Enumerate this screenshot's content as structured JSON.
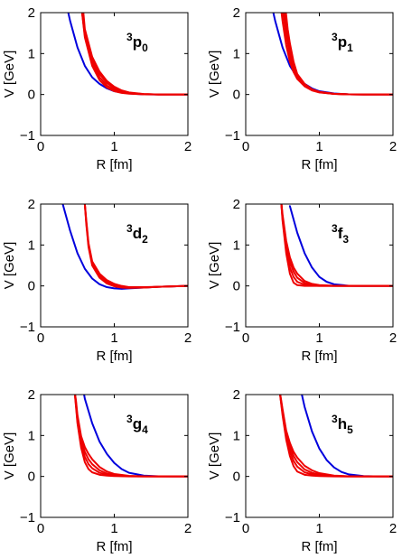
{
  "colors": {
    "blue": "#0000dd",
    "red": "#ee0000",
    "axes": "#000000"
  },
  "chart_data": [
    {
      "type": "line",
      "wave_sup": "3",
      "wave_letter": "p",
      "wave_sub": "0",
      "xlabel": "R [fm]",
      "ylabel": "V [GeV]",
      "xlim": [
        0,
        2
      ],
      "ylim": [
        -1,
        2
      ],
      "xticks": [
        "0",
        "1",
        "2"
      ],
      "yticks": [
        "−1",
        "0",
        "1",
        "2"
      ],
      "series": [
        {
          "color": "blue",
          "x": [
            0.3,
            0.4,
            0.5,
            0.6,
            0.7,
            0.8,
            0.9,
            1.0,
            1.2,
            1.4,
            1.6,
            1.8,
            2.0
          ],
          "y": [
            2.6,
            1.8,
            1.15,
            0.7,
            0.42,
            0.26,
            0.15,
            0.08,
            0.025,
            0.005,
            0,
            0,
            0
          ]
        },
        {
          "color": "red",
          "x": [
            0.55,
            0.6,
            0.7,
            0.8,
            0.9,
            1.0,
            1.1,
            1.2,
            1.4,
            1.6,
            1.8,
            2.0
          ],
          "y": [
            2.2,
            1.4,
            0.7,
            0.35,
            0.17,
            0.08,
            0.04,
            0.02,
            0.005,
            0,
            0,
            0
          ]
        },
        {
          "color": "red",
          "x": [
            0.55,
            0.6,
            0.7,
            0.8,
            0.9,
            1.0,
            1.1,
            1.2,
            1.4,
            1.6,
            1.8,
            2.0
          ],
          "y": [
            2.2,
            1.45,
            0.78,
            0.42,
            0.22,
            0.11,
            0.055,
            0.03,
            0.008,
            0,
            0,
            0
          ]
        },
        {
          "color": "red",
          "x": [
            0.55,
            0.6,
            0.7,
            0.8,
            0.9,
            1.0,
            1.1,
            1.2,
            1.4,
            1.6,
            1.8,
            2.0
          ],
          "y": [
            2.2,
            1.5,
            0.85,
            0.5,
            0.28,
            0.15,
            0.08,
            0.04,
            0.01,
            0,
            0,
            0
          ]
        },
        {
          "color": "red",
          "x": [
            0.57,
            0.6,
            0.7,
            0.8,
            0.9,
            1.0,
            1.1,
            1.2,
            1.4,
            1.6,
            1.8,
            2.0
          ],
          "y": [
            2.2,
            1.6,
            0.92,
            0.56,
            0.33,
            0.19,
            0.1,
            0.05,
            0.012,
            0,
            0,
            0
          ]
        }
      ]
    },
    {
      "type": "line",
      "wave_sup": "3",
      "wave_letter": "p",
      "wave_sub": "1",
      "xlabel": "R [fm]",
      "ylabel": "V [GeV]",
      "xlim": [
        0,
        2
      ],
      "ylim": [
        -1,
        2
      ],
      "xticks": [
        "0",
        "1",
        "2"
      ],
      "yticks": [
        "−1",
        "0",
        "1",
        "2"
      ],
      "series": [
        {
          "color": "blue",
          "x": [
            0.3,
            0.4,
            0.5,
            0.6,
            0.7,
            0.8,
            0.9,
            1.0,
            1.2,
            1.4,
            1.6,
            1.8,
            2.0
          ],
          "y": [
            2.6,
            1.8,
            1.15,
            0.7,
            0.42,
            0.26,
            0.15,
            0.08,
            0.025,
            0.005,
            0,
            0,
            0
          ]
        },
        {
          "color": "red",
          "x": [
            0.48,
            0.5,
            0.55,
            0.6,
            0.65,
            0.7,
            0.8,
            0.9,
            1.0,
            1.2,
            1.4,
            1.6,
            1.8,
            2.0
          ],
          "y": [
            2.1,
            1.8,
            1.2,
            0.8,
            0.55,
            0.38,
            0.2,
            0.1,
            0.05,
            0.015,
            0.003,
            0,
            0,
            0
          ]
        },
        {
          "color": "red",
          "x": [
            0.5,
            0.55,
            0.6,
            0.65,
            0.7,
            0.8,
            0.9,
            1.0,
            1.2,
            1.4,
            1.6,
            1.8,
            2.0
          ],
          "y": [
            2.1,
            1.45,
            0.95,
            0.62,
            0.42,
            0.22,
            0.11,
            0.055,
            0.015,
            0.003,
            0,
            0,
            0
          ]
        },
        {
          "color": "red",
          "x": [
            0.52,
            0.55,
            0.6,
            0.65,
            0.7,
            0.8,
            0.9,
            1.0,
            1.2,
            1.4,
            1.6,
            1.8,
            2.0
          ],
          "y": [
            2.1,
            1.7,
            1.1,
            0.7,
            0.45,
            0.24,
            0.12,
            0.06,
            0.017,
            0.004,
            0,
            0,
            0
          ]
        },
        {
          "color": "red",
          "x": [
            0.54,
            0.57,
            0.6,
            0.65,
            0.7,
            0.8,
            0.9,
            1.0,
            1.2,
            1.4,
            1.6,
            1.8,
            2.0
          ],
          "y": [
            2.1,
            1.6,
            1.25,
            0.8,
            0.5,
            0.26,
            0.13,
            0.065,
            0.018,
            0.004,
            0,
            0,
            0
          ]
        }
      ]
    },
    {
      "type": "line",
      "wave_sup": "3",
      "wave_letter": "d",
      "wave_sub": "2",
      "xlabel": "R [fm]",
      "ylabel": "V [GeV]",
      "xlim": [
        0,
        2
      ],
      "ylim": [
        -1,
        2
      ],
      "xticks": [
        "0",
        "1",
        "2"
      ],
      "yticks": [
        "−1",
        "0",
        "1",
        "2"
      ],
      "series": [
        {
          "color": "blue",
          "x": [
            0.3,
            0.4,
            0.5,
            0.6,
            0.7,
            0.8,
            0.9,
            1.0,
            1.1,
            1.2,
            1.4,
            1.6,
            1.8,
            2.0
          ],
          "y": [
            2.0,
            1.35,
            0.8,
            0.42,
            0.18,
            0.04,
            -0.03,
            -0.06,
            -0.07,
            -0.06,
            -0.04,
            -0.02,
            -0.01,
            0
          ]
        },
        {
          "color": "red",
          "x": [
            0.6,
            0.62,
            0.65,
            0.7,
            0.8,
            0.9,
            1.0,
            1.1,
            1.2,
            1.4,
            1.6,
            1.8,
            2.0
          ],
          "y": [
            2.0,
            1.5,
            0.95,
            0.5,
            0.2,
            0.06,
            -0.01,
            -0.04,
            -0.05,
            -0.04,
            -0.02,
            -0.01,
            0
          ]
        },
        {
          "color": "red",
          "x": [
            0.6,
            0.62,
            0.65,
            0.7,
            0.8,
            0.9,
            1.0,
            1.1,
            1.2,
            1.4,
            1.6,
            1.8,
            2.0
          ],
          "y": [
            2.0,
            1.55,
            1.0,
            0.55,
            0.25,
            0.1,
            0.02,
            -0.02,
            -0.04,
            -0.04,
            -0.02,
            -0.01,
            0
          ]
        },
        {
          "color": "red",
          "x": [
            0.6,
            0.62,
            0.65,
            0.7,
            0.8,
            0.9,
            1.0,
            1.1,
            1.2,
            1.4,
            1.6,
            1.8,
            2.0
          ],
          "y": [
            2.0,
            1.6,
            1.05,
            0.6,
            0.3,
            0.14,
            0.05,
            0.0,
            -0.03,
            -0.03,
            -0.02,
            -0.01,
            0
          ]
        }
      ]
    },
    {
      "type": "line",
      "wave_sup": "3",
      "wave_letter": "f",
      "wave_sub": "3",
      "xlabel": "R [fm]",
      "ylabel": "V [GeV]",
      "xlim": [
        0,
        2
      ],
      "ylim": [
        -1,
        2
      ],
      "xticks": [
        "0",
        "1",
        "2"
      ],
      "yticks": [
        "−1",
        "0",
        "1",
        "2"
      ],
      "series": [
        {
          "color": "blue",
          "x": [
            0.6,
            0.7,
            0.8,
            0.9,
            1.0,
            1.1,
            1.2,
            1.4,
            1.6,
            1.8,
            2.0
          ],
          "y": [
            1.95,
            1.3,
            0.8,
            0.45,
            0.22,
            0.1,
            0.04,
            0.005,
            0,
            0,
            0
          ]
        },
        {
          "color": "red",
          "x": [
            0.48,
            0.5,
            0.55,
            0.6,
            0.65,
            0.7,
            0.8,
            0.9,
            1.0,
            1.2,
            1.4,
            1.6,
            1.8,
            2.0
          ],
          "y": [
            2.1,
            1.6,
            0.8,
            0.3,
            0.08,
            0.02,
            0.0,
            0,
            0,
            0,
            0,
            0,
            0,
            0
          ]
        },
        {
          "color": "red",
          "x": [
            0.48,
            0.5,
            0.55,
            0.6,
            0.65,
            0.7,
            0.8,
            0.9,
            1.0,
            1.2,
            1.4,
            1.6,
            1.8,
            2.0
          ],
          "y": [
            2.1,
            1.65,
            0.9,
            0.45,
            0.22,
            0.1,
            0.03,
            0.01,
            0,
            0,
            0,
            0,
            0,
            0
          ]
        },
        {
          "color": "red",
          "x": [
            0.48,
            0.5,
            0.55,
            0.6,
            0.65,
            0.7,
            0.8,
            0.9,
            1.0,
            1.2,
            1.4,
            1.6,
            1.8,
            2.0
          ],
          "y": [
            2.1,
            1.7,
            1.0,
            0.58,
            0.35,
            0.2,
            0.07,
            0.025,
            0.01,
            0,
            0,
            0,
            0,
            0
          ]
        },
        {
          "color": "red",
          "x": [
            0.48,
            0.5,
            0.55,
            0.6,
            0.65,
            0.7,
            0.8,
            0.9,
            1.0,
            1.2,
            1.4,
            1.6,
            1.8,
            2.0
          ],
          "y": [
            2.1,
            1.75,
            1.1,
            0.7,
            0.45,
            0.3,
            0.12,
            0.05,
            0.02,
            0.003,
            0,
            0,
            0,
            0
          ]
        }
      ]
    },
    {
      "type": "line",
      "wave_sup": "3",
      "wave_letter": "g",
      "wave_sub": "4",
      "xlabel": "R [fm]",
      "ylabel": "V [GeV]",
      "xlim": [
        0,
        2
      ],
      "ylim": [
        -1,
        2
      ],
      "xticks": [
        "0",
        "1",
        "2"
      ],
      "yticks": [
        "−1",
        "0",
        "1",
        "2"
      ],
      "series": [
        {
          "color": "blue",
          "x": [
            0.58,
            0.6,
            0.7,
            0.8,
            0.9,
            1.0,
            1.1,
            1.2,
            1.4,
            1.6,
            1.8,
            2.0
          ],
          "y": [
            2.1,
            1.9,
            1.3,
            0.85,
            0.55,
            0.33,
            0.18,
            0.09,
            0.02,
            0.004,
            0,
            0
          ]
        },
        {
          "color": "red",
          "x": [
            0.46,
            0.48,
            0.5,
            0.55,
            0.6,
            0.65,
            0.7,
            0.8,
            0.9,
            1.0,
            1.2,
            1.4,
            1.6,
            1.8,
            2.0
          ],
          "y": [
            2.1,
            1.7,
            1.3,
            0.7,
            0.35,
            0.18,
            0.1,
            0.04,
            0.02,
            0.01,
            0,
            0,
            0,
            0,
            0
          ]
        },
        {
          "color": "red",
          "x": [
            0.46,
            0.48,
            0.5,
            0.55,
            0.6,
            0.65,
            0.7,
            0.8,
            0.9,
            1.0,
            1.2,
            1.4,
            1.6,
            1.8,
            2.0
          ],
          "y": [
            2.1,
            1.75,
            1.35,
            0.8,
            0.48,
            0.3,
            0.2,
            0.09,
            0.04,
            0.02,
            0.003,
            0,
            0,
            0,
            0
          ]
        },
        {
          "color": "red",
          "x": [
            0.46,
            0.48,
            0.5,
            0.55,
            0.6,
            0.65,
            0.7,
            0.8,
            0.9,
            1.0,
            1.2,
            1.4,
            1.6,
            1.8,
            2.0
          ],
          "y": [
            2.1,
            1.8,
            1.4,
            0.88,
            0.6,
            0.42,
            0.3,
            0.15,
            0.07,
            0.035,
            0.007,
            0,
            0,
            0,
            0
          ]
        },
        {
          "color": "red",
          "x": [
            0.46,
            0.48,
            0.5,
            0.55,
            0.6,
            0.65,
            0.7,
            0.8,
            0.9,
            1.0,
            1.2,
            1.4,
            1.6,
            1.8,
            2.0
          ],
          "y": [
            2.1,
            1.85,
            1.5,
            0.98,
            0.72,
            0.55,
            0.42,
            0.23,
            0.12,
            0.06,
            0.015,
            0.003,
            0,
            0,
            0
          ]
        }
      ]
    },
    {
      "type": "line",
      "wave_sup": "3",
      "wave_letter": "h",
      "wave_sub": "5",
      "xlabel": "R [fm]",
      "ylabel": "V [GeV]",
      "xlim": [
        0,
        2
      ],
      "ylim": [
        -1,
        2
      ],
      "xticks": [
        "0",
        "1",
        "2"
      ],
      "yticks": [
        "−1",
        "0",
        "1",
        "2"
      ],
      "series": [
        {
          "color": "blue",
          "x": [
            0.75,
            0.8,
            0.9,
            1.0,
            1.1,
            1.2,
            1.3,
            1.4,
            1.6,
            1.8,
            2.0
          ],
          "y": [
            2.1,
            1.7,
            1.1,
            0.68,
            0.4,
            0.22,
            0.11,
            0.05,
            0.01,
            0,
            0
          ]
        },
        {
          "color": "red",
          "x": [
            0.46,
            0.48,
            0.5,
            0.55,
            0.6,
            0.65,
            0.7,
            0.8,
            0.9,
            1.0,
            1.2,
            1.4,
            1.6,
            1.8,
            2.0
          ],
          "y": [
            2.1,
            1.8,
            1.5,
            0.9,
            0.5,
            0.25,
            0.12,
            0.04,
            0.02,
            0.01,
            0,
            0,
            0,
            0,
            0
          ]
        },
        {
          "color": "red",
          "x": [
            0.46,
            0.48,
            0.5,
            0.55,
            0.6,
            0.65,
            0.7,
            0.8,
            0.9,
            1.0,
            1.2,
            1.4,
            1.6,
            1.8,
            2.0
          ],
          "y": [
            2.1,
            1.82,
            1.55,
            0.98,
            0.62,
            0.38,
            0.24,
            0.1,
            0.05,
            0.025,
            0.005,
            0,
            0,
            0,
            0
          ]
        },
        {
          "color": "red",
          "x": [
            0.46,
            0.48,
            0.5,
            0.55,
            0.6,
            0.65,
            0.7,
            0.8,
            0.9,
            1.0,
            1.2,
            1.4,
            1.6,
            1.8,
            2.0
          ],
          "y": [
            2.1,
            1.85,
            1.6,
            1.05,
            0.72,
            0.5,
            0.35,
            0.17,
            0.09,
            0.045,
            0.01,
            0.002,
            0,
            0,
            0
          ]
        },
        {
          "color": "red",
          "x": [
            0.46,
            0.48,
            0.5,
            0.55,
            0.6,
            0.65,
            0.7,
            0.8,
            0.9,
            1.0,
            1.2,
            1.4,
            1.6,
            1.8,
            2.0
          ],
          "y": [
            2.1,
            1.88,
            1.65,
            1.12,
            0.82,
            0.6,
            0.46,
            0.26,
            0.15,
            0.08,
            0.02,
            0.005,
            0,
            0,
            0
          ]
        }
      ]
    }
  ]
}
